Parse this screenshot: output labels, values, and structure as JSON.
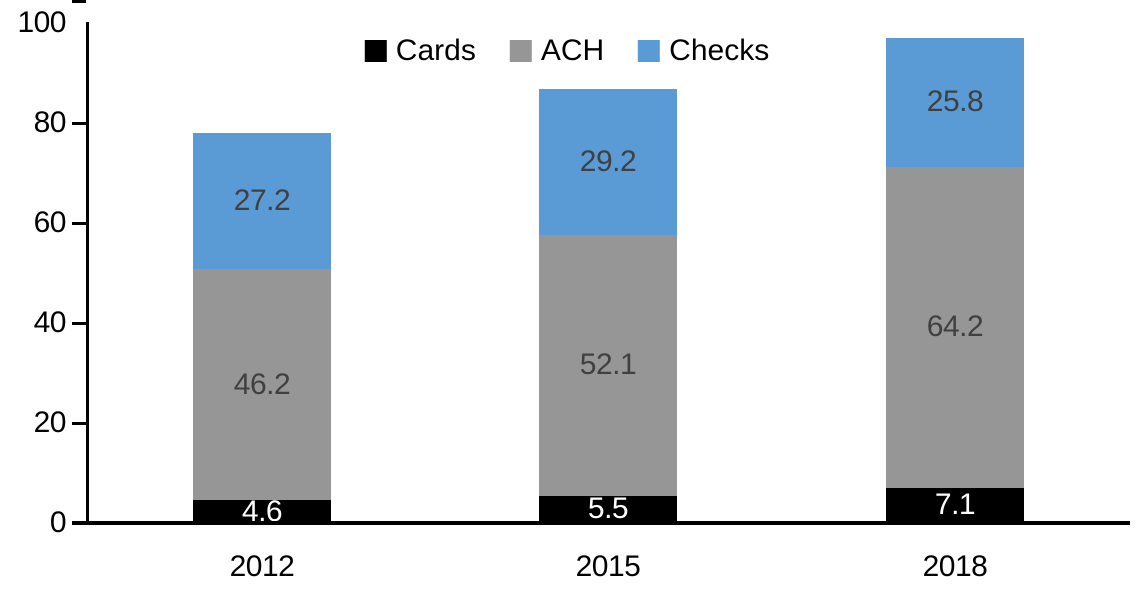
{
  "chart_data": {
    "type": "bar",
    "stacked": true,
    "categories": [
      "2012",
      "2015",
      "2018"
    ],
    "series": [
      {
        "name": "Cards",
        "color": "#000000",
        "label_color": "#FFFFFF",
        "values": [
          4.6,
          5.5,
          7.1
        ]
      },
      {
        "name": "ACH",
        "color": "#969696",
        "label_color": "#404040",
        "values": [
          46.2,
          52.1,
          64.2
        ]
      },
      {
        "name": "Checks",
        "color": "#5B9BD5",
        "label_color": "#404040",
        "values": [
          27.2,
          29.2,
          25.8
        ]
      }
    ],
    "ylim": [
      0,
      100
    ],
    "yticks": [
      0,
      20,
      40,
      60,
      80,
      100
    ],
    "xlabel": "",
    "ylabel": "",
    "legend_position": "top",
    "grid": false,
    "axis_color": "#000000"
  }
}
